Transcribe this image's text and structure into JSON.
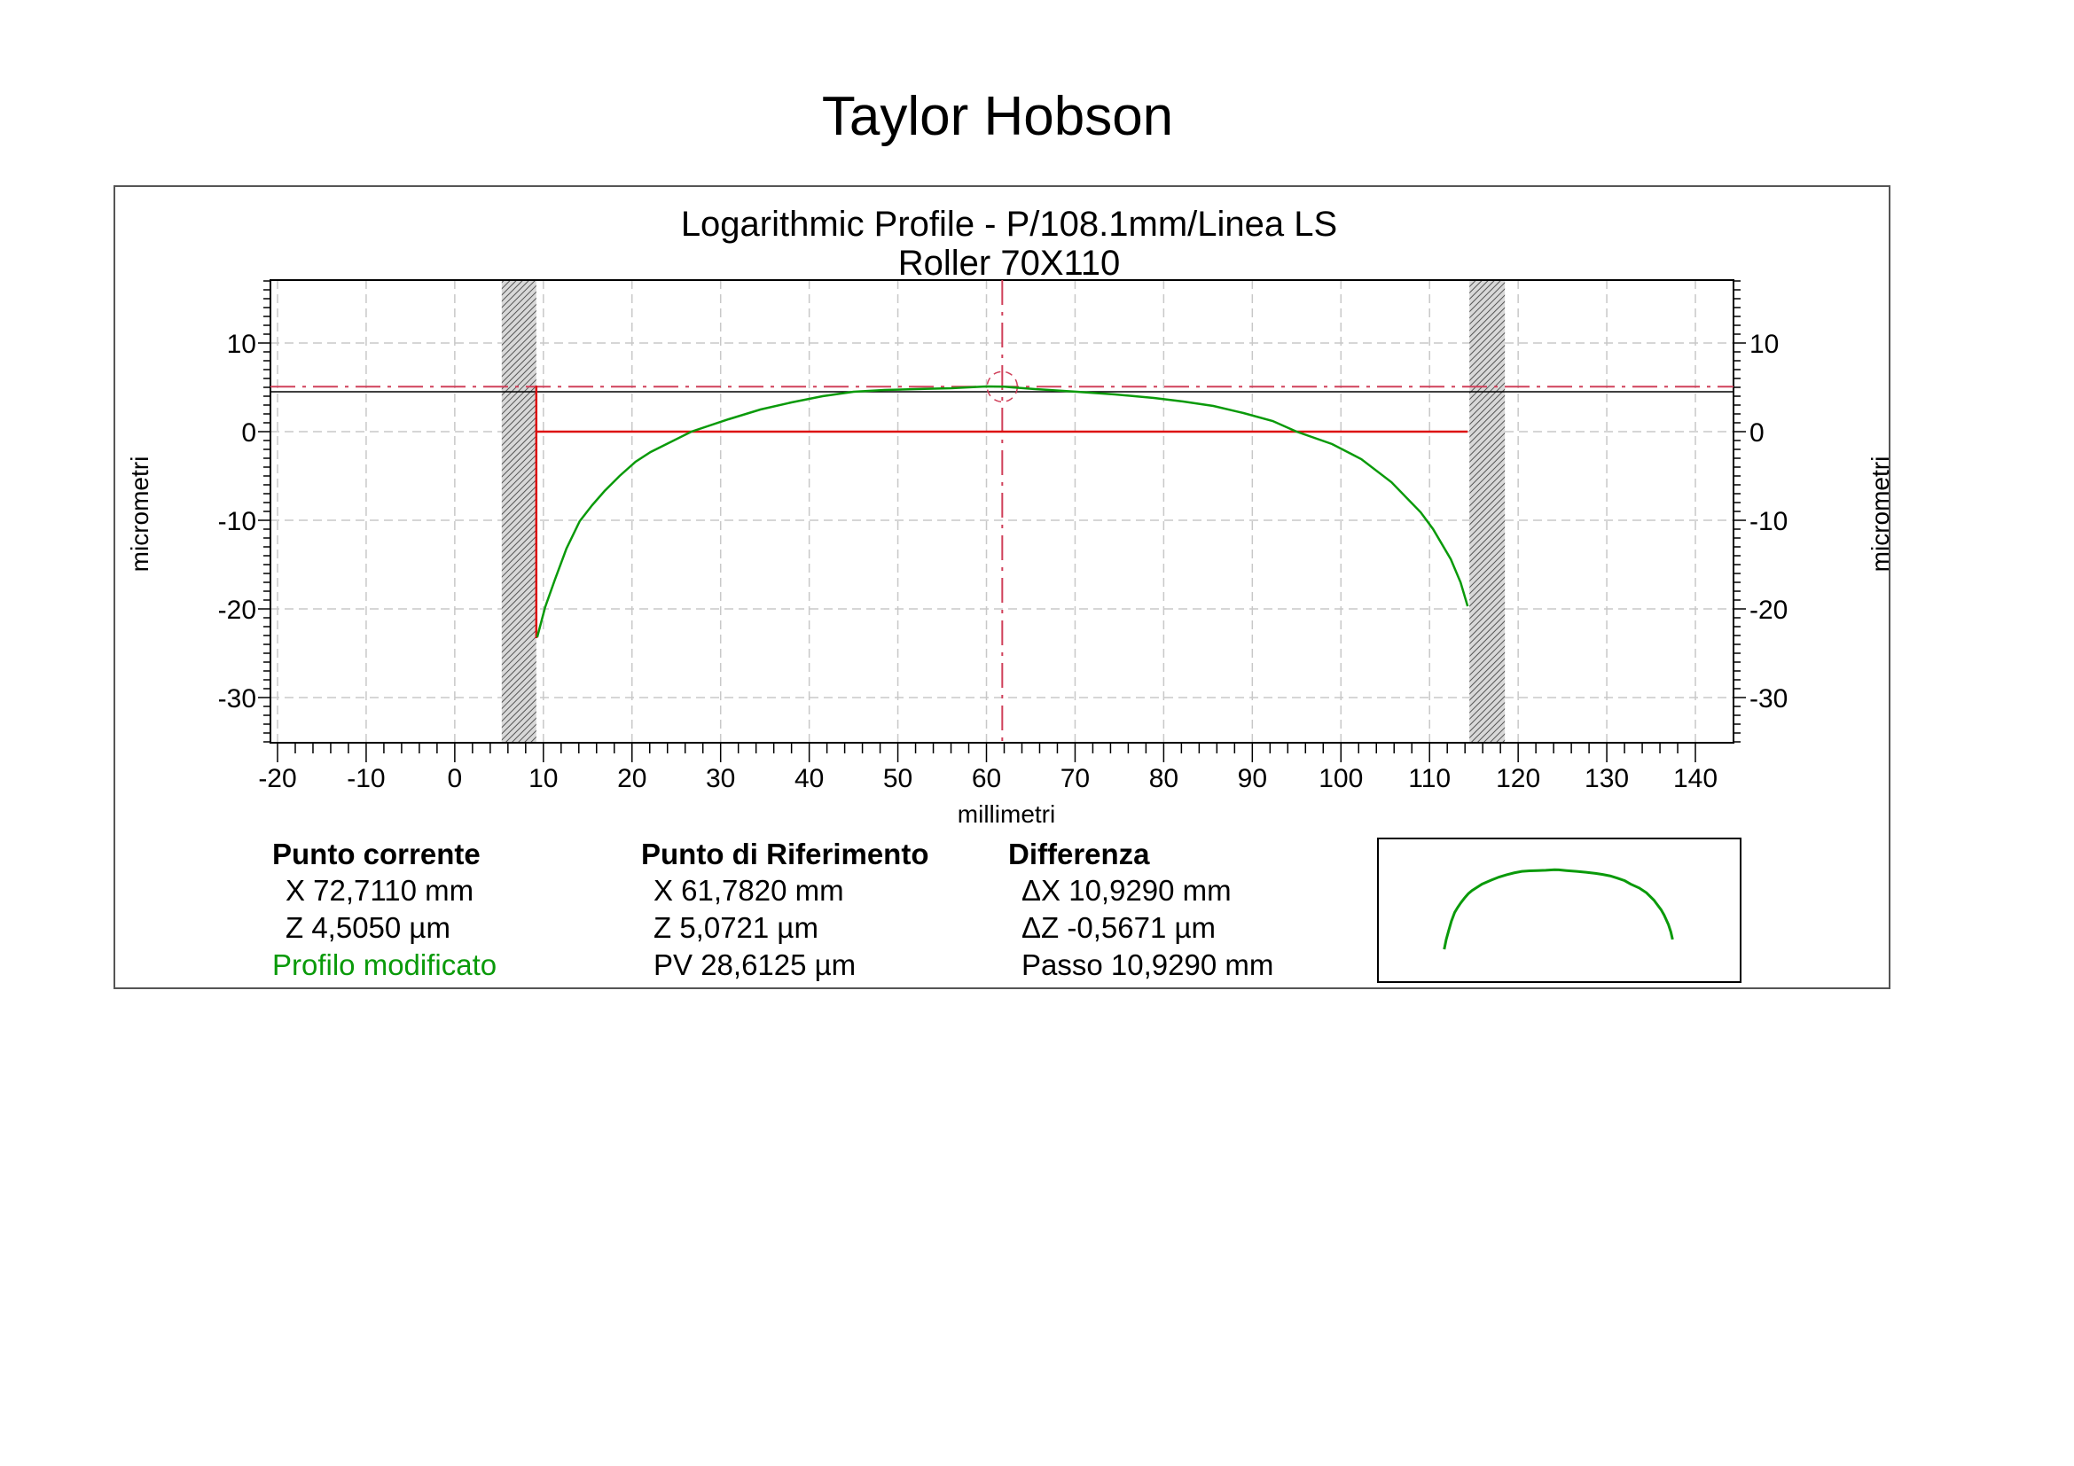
{
  "header": {
    "brand": "Taylor Hobson"
  },
  "chart_data": {
    "type": "line",
    "title": "Logarithmic Profile - P/108.1mm/Linea LS",
    "subtitle": "Roller 70X110",
    "xlabel": "millimetri",
    "ylabel": "micrometri",
    "ylabel_right": "micrometri",
    "xlim": [
      -20.8,
      144.3
    ],
    "ylim": [
      -35.1,
      17.1
    ],
    "x_ticks": [
      -20,
      -10,
      0,
      10,
      20,
      30,
      40,
      50,
      60,
      70,
      80,
      90,
      100,
      110,
      120,
      130,
      140
    ],
    "y_ticks": [
      10,
      0,
      -10,
      -20,
      -30
    ],
    "grid": true,
    "colors": {
      "profile": "#0a9a0a",
      "reference": "#dd1111",
      "cursor_ref": "#d0405a",
      "current": "#000000",
      "hatch": "#777777"
    },
    "excluded_zones": [
      [
        5.3,
        9.2
      ],
      [
        114.5,
        118.5
      ]
    ],
    "series": [
      {
        "x": [
          9.3,
          10.2,
          11.3,
          12.6,
          14.1,
          15.5,
          16.9,
          18.6,
          20.4,
          22.1,
          23.9,
          26.7,
          30.9,
          34.5,
          38,
          41.5,
          45,
          48.5,
          52,
          56,
          60,
          62,
          65.5,
          70.2,
          74.5,
          78.9,
          82.2,
          85.6,
          89,
          92.3,
          95,
          99,
          102.3,
          105.7,
          109,
          110.4,
          112.4,
          113.5,
          114.3
        ],
        "y": [
          -23.2,
          -19.8,
          -16.7,
          -13.2,
          -10.1,
          -8.3,
          -6.7,
          -5.0,
          -3.4,
          -2.3,
          -1.4,
          0,
          1.4,
          2.5,
          3.3,
          4.0,
          4.5,
          4.7,
          4.8,
          4.9,
          5.1,
          5.07,
          4.8,
          4.5,
          4.2,
          3.8,
          3.4,
          2.9,
          2.1,
          1.2,
          0,
          -1.4,
          -3.1,
          -5.7,
          -9.1,
          -11,
          -14.4,
          -17,
          -19.7
        ]
      }
    ],
    "reference_line": {
      "y": 0,
      "x_start": 9.2,
      "x_end": 114.3,
      "vertical_at_x": 9.2,
      "vertical_from": 5.2,
      "vertical_to": -23.3
    },
    "reference_point": {
      "x": 61.782,
      "z": 5.0721
    },
    "current_point": {
      "x": 72.711,
      "z": 4.505
    }
  },
  "info": {
    "current": {
      "heading": "Punto corrente",
      "x": "X  72,7110 mm",
      "z": "Z  4,5050 µm",
      "mode": "Profilo modificato"
    },
    "reference": {
      "heading": "Punto di Riferimento",
      "x": "X  61,7820 mm",
      "z": "Z  5,0721 µm",
      "pv": "PV 28,6125 µm"
    },
    "difference": {
      "heading": "Differenza",
      "dx": "ΔX  10,9290 mm",
      "dz": "ΔZ  -0,5671 µm",
      "step": "Passo 10,9290 mm"
    }
  }
}
